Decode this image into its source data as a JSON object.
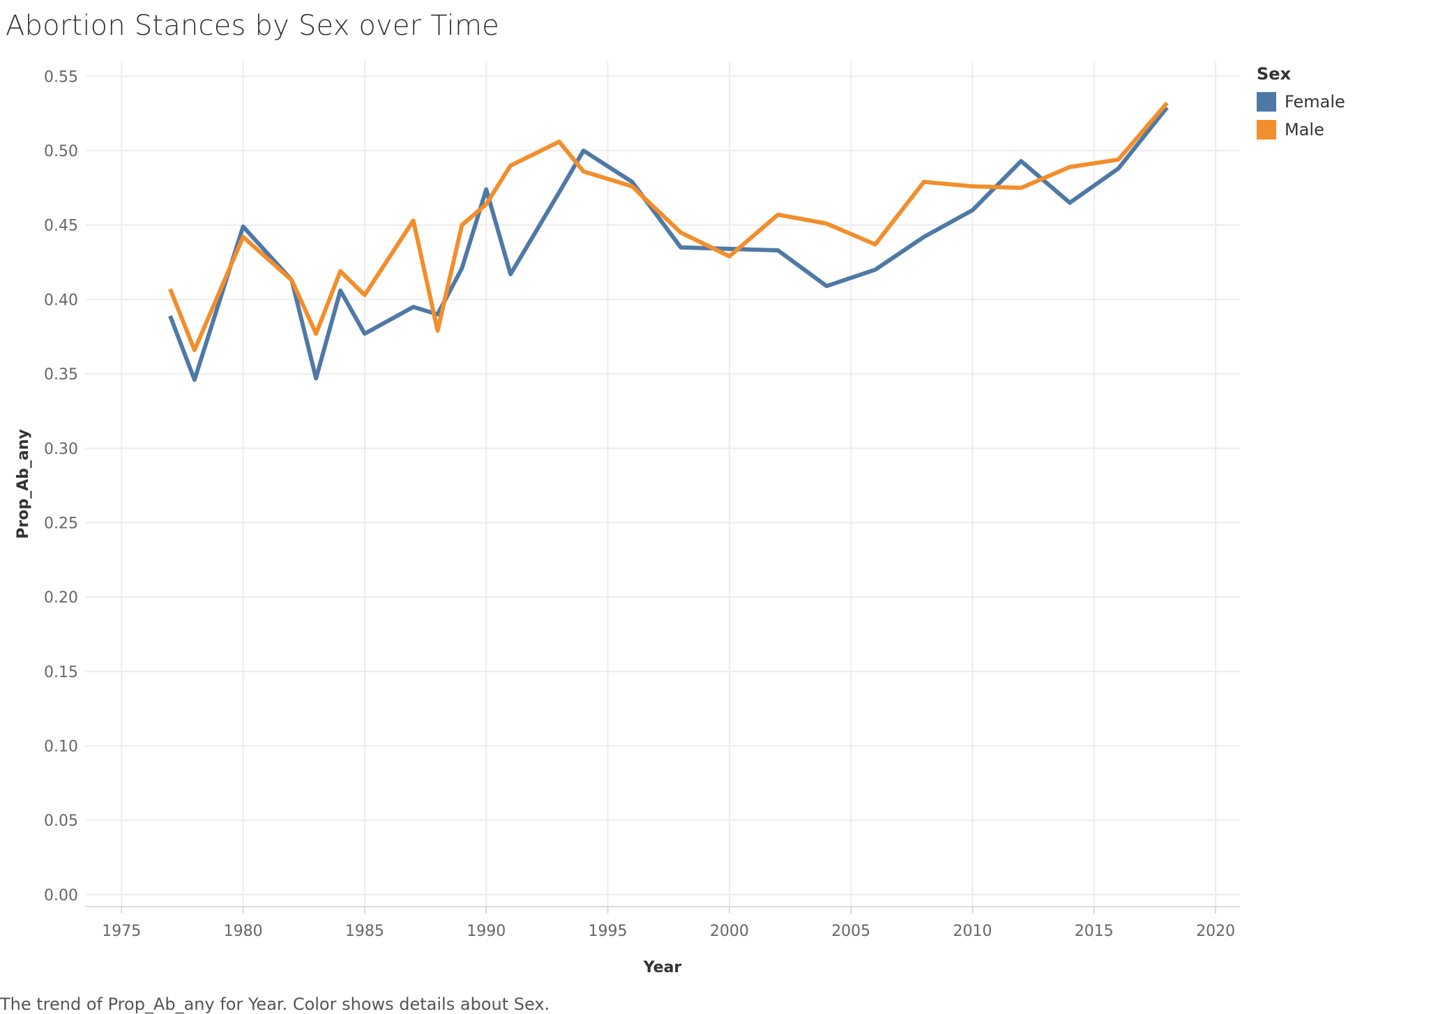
{
  "chart_data": {
    "type": "line",
    "title": "Abortion Stances by Sex over Time",
    "xlabel": "Year",
    "ylabel": "Prop_Ab_any",
    "xlim": [
      1973.5,
      2021
    ],
    "ylim": [
      -0.008,
      0.56
    ],
    "xticks": [
      "1975",
      "1980",
      "1985",
      "1990",
      "1995",
      "2000",
      "2005",
      "2010",
      "2015",
      "2020"
    ],
    "yticks": [
      "0.00",
      "0.05",
      "0.10",
      "0.15",
      "0.20",
      "0.25",
      "0.30",
      "0.35",
      "0.40",
      "0.45",
      "0.50",
      "0.55"
    ],
    "grid": true,
    "legend_title": "Sex",
    "legend_position": "top-right",
    "caption": "The trend of Prop_Ab_any for Year.  Color shows details about Sex.",
    "series": [
      {
        "name": "Female",
        "color": "#4e79a7",
        "x": [
          1977,
          1978,
          1980,
          1982,
          1983,
          1984,
          1985,
          1987,
          1988,
          1989,
          1990,
          1991,
          1993,
          1994,
          1996,
          1998,
          2000,
          2002,
          2004,
          2006,
          2008,
          2010,
          2012,
          2014,
          2016,
          2018
        ],
        "values": [
          0.389,
          0.346,
          0.449,
          0.413,
          0.347,
          0.406,
          0.377,
          0.395,
          0.39,
          0.421,
          0.474,
          0.417,
          0.472,
          0.5,
          0.479,
          0.435,
          0.434,
          0.433,
          0.409,
          0.42,
          0.442,
          0.46,
          0.493,
          0.465,
          0.488,
          0.529
        ]
      },
      {
        "name": "Male",
        "color": "#f28e2b",
        "x": [
          1977,
          1978,
          1980,
          1982,
          1983,
          1984,
          1985,
          1987,
          1988,
          1989,
          1990,
          1991,
          1993,
          1994,
          1996,
          1998,
          2000,
          2002,
          2004,
          2006,
          2008,
          2010,
          2012,
          2014,
          2016,
          2018
        ],
        "values": [
          0.407,
          0.366,
          0.442,
          0.413,
          0.377,
          0.419,
          0.403,
          0.453,
          0.379,
          0.45,
          0.464,
          0.49,
          0.506,
          0.486,
          0.476,
          0.445,
          0.429,
          0.457,
          0.451,
          0.437,
          0.479,
          0.476,
          0.475,
          0.489,
          0.494,
          0.532
        ]
      }
    ]
  }
}
